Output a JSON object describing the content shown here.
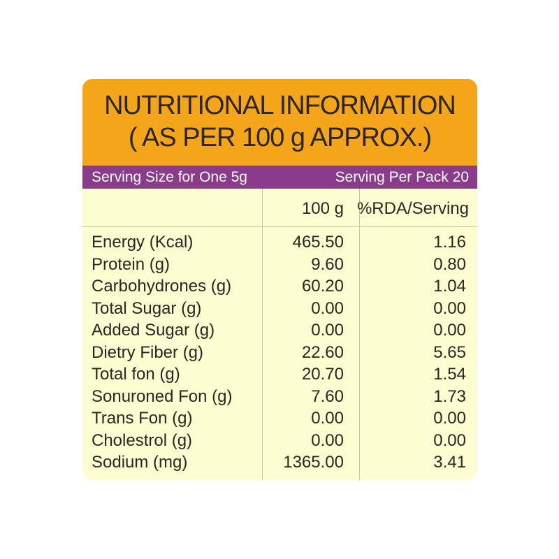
{
  "header": {
    "title_lines": [
      "NUTRITIONAL INFORMATION",
      "( AS PER 100 g APPROX.)"
    ]
  },
  "serving": {
    "size": "Serving Size for One 5g",
    "per_pack": "Serving Per Pack 20"
  },
  "table": {
    "columns": [
      "100 g",
      "%RDA/Serving"
    ],
    "rows": [
      [
        "Energy (Kcal)",
        "465.50",
        "1.16"
      ],
      [
        "Protein (g)",
        "9.60",
        "0.80"
      ],
      [
        "Carbohydrones (g)",
        "60.20",
        "1.04"
      ],
      [
        "Total Sugar (g)",
        "0.00",
        "0.00"
      ],
      [
        "Added Sugar (g)",
        "0.00",
        "0.00"
      ],
      [
        "Dietry Fiber (g)",
        "22.60",
        "5.65"
      ],
      [
        "Total fon (g)",
        "20.70",
        "1.54"
      ],
      [
        "Sonuroned Fon (g)",
        "7.60",
        "1.73"
      ],
      [
        "Trans Fon (g)",
        "0.00",
        "0.00"
      ],
      [
        "Cholestrol (g)",
        "0.00",
        "0.00"
      ],
      [
        "Sodium (mg)",
        "1365.00",
        "3.41"
      ]
    ]
  }
}
